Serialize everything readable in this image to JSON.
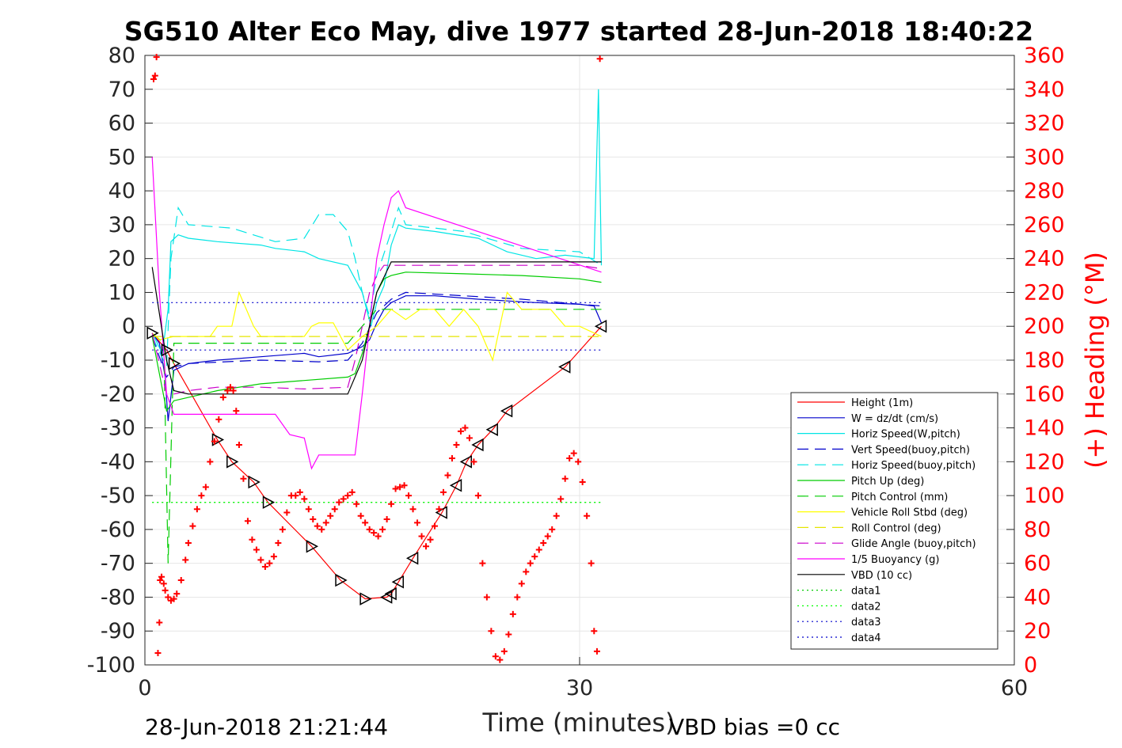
{
  "title": "SG510 Alter Eco May, dive 1977 started 28-Jun-2018 18:40:22",
  "footer_left": "28-Jun-2018 21:21:44",
  "footer_right": "VBD bias =0 cc",
  "chart_data": {
    "type": "line",
    "xlabel": "Time (minutes)",
    "ylabel_left": "",
    "ylabel_right": "(+) Heading (°M)",
    "xlim": [
      0,
      60
    ],
    "ylim_left": [
      -100,
      80
    ],
    "ylim_right": [
      0,
      360
    ],
    "x_ticks": [
      "0",
      "30",
      "60"
    ],
    "y_ticks_left": [
      "80",
      "70",
      "60",
      "50",
      "40",
      "30",
      "20",
      "10",
      "0",
      "-10",
      "-20",
      "-30",
      "-40",
      "-50",
      "-60",
      "-70",
      "-80",
      "-90",
      "-100"
    ],
    "y_ticks_right": [
      "360",
      "340",
      "320",
      "300",
      "280",
      "260",
      "240",
      "220",
      "200",
      "180",
      "160",
      "140",
      "120",
      "100",
      "80",
      "60",
      "40",
      "20",
      "0"
    ],
    "grid": true,
    "legend_position": "right",
    "colors": {
      "height": "#ff0000",
      "w": "#0000cc",
      "horiz": "#00e5e5",
      "vert_buoy": "#0000cc",
      "horiz_buoy": "#00e5e5",
      "pitch": "#00cc00",
      "pitch_ctrl": "#00cc00",
      "roll": "#ffff00",
      "roll_ctrl": "#e5e500",
      "glide": "#cc00cc",
      "buoyancy": "#ff00ff",
      "vbd": "#000000",
      "data1": "#00cc00",
      "data2": "#00ff00",
      "data3": "#0000cc",
      "data4": "#0000cc"
    },
    "series": [
      {
        "name": "Height (1m)",
        "x": [
          0.5,
          1.5,
          2,
          5,
          6,
          7.5,
          8.5,
          11.5,
          13.5,
          15.2,
          16.7,
          17,
          17.5,
          18.5,
          20.5,
          21.5,
          22.2,
          23,
          24,
          25,
          29,
          31.5
        ],
        "y": [
          -2,
          -7,
          -11,
          -33.5,
          -40,
          -46,
          -52,
          -65,
          -75,
          -80.5,
          -80,
          -79,
          -75.5,
          -68.5,
          -55,
          -47,
          -40,
          -35,
          -30.5,
          -25,
          -12,
          0
        ]
      },
      {
        "name": "W = dz/dt (cm/s)",
        "x": [
          0.5,
          1,
          1.4,
          1.6,
          2,
          3,
          5,
          8,
          11,
          12,
          14,
          14.5,
          15,
          15.5,
          16,
          16.5,
          17,
          17.5,
          18,
          20,
          23,
          27,
          30,
          31,
          31.5
        ],
        "y": [
          -2,
          -5,
          -15,
          -28,
          -13,
          -11,
          -10,
          -9,
          -8,
          -9,
          -8,
          -7,
          -6,
          -4,
          1,
          5,
          7,
          8,
          9,
          9,
          8,
          7,
          6.5,
          6,
          1
        ]
      },
      {
        "name": "Horiz Speed(W,pitch)",
        "x": [
          0.5,
          1.2,
          1.6,
          1.8,
          2.3,
          3,
          5,
          8,
          9,
          11,
          12,
          14,
          14.5,
          15,
          15.3,
          15.6,
          16,
          16.5,
          17,
          17.5,
          18,
          20,
          23,
          25,
          27,
          29,
          31,
          31.3,
          31.5
        ],
        "y": [
          -2,
          -8,
          5,
          25,
          27,
          26,
          25,
          24,
          23,
          22,
          20,
          18,
          14,
          10,
          5,
          0,
          7,
          12,
          24,
          30,
          29,
          28,
          26,
          22,
          20,
          21,
          20,
          70,
          18
        ]
      },
      {
        "name": "Vert Speed(buoy,pitch)",
        "x": [
          0.5,
          1.5,
          2,
          3,
          8,
          12,
          14,
          15,
          16,
          17,
          18,
          22,
          26,
          31.5
        ],
        "y": [
          -3,
          -15,
          -12,
          -11,
          -10,
          -10.5,
          -10,
          -5,
          4,
          8,
          10,
          9,
          8,
          6
        ]
      },
      {
        "name": "Horiz Speed(buoy,pitch)",
        "x": [
          0.5,
          1.5,
          1.8,
          2.3,
          3,
          6,
          9,
          11,
          12,
          13,
          14,
          14.5,
          15,
          15.5,
          16,
          17,
          17.5,
          18,
          22,
          26,
          30,
          31.5
        ],
        "y": [
          -3,
          -12,
          20,
          35,
          30,
          29,
          25,
          26,
          33,
          33,
          28,
          20,
          10,
          3,
          15,
          28,
          35,
          30,
          28,
          23,
          22,
          18
        ]
      },
      {
        "name": "Pitch Up (deg)",
        "x": [
          0.5,
          1.5,
          2,
          3,
          5,
          8,
          11,
          14,
          14.5,
          15,
          15.5,
          16,
          16.5,
          17,
          18,
          22,
          26,
          30,
          31.5
        ],
        "y": [
          -3,
          -25,
          -22,
          -21,
          -19,
          -17,
          -16,
          -15,
          -14,
          -8,
          0,
          10,
          14,
          15,
          16,
          15.5,
          15,
          14,
          13
        ]
      },
      {
        "name": "Pitch Control (mm)",
        "x": [
          0.5,
          1.3,
          1.6,
          2,
          2.5,
          14,
          15,
          16,
          17,
          31.5
        ],
        "y": [
          -2,
          -5,
          -70,
          -5,
          -5,
          -5,
          0,
          5,
          5,
          5
        ]
      },
      {
        "name": "Vehicle Roll Stbd (deg)",
        "x": [
          0.5,
          1,
          2,
          3,
          4.5,
          5,
          5.5,
          6,
          6.5,
          7.5,
          8,
          9,
          10,
          11,
          11.5,
          12,
          13,
          14,
          15,
          16,
          17,
          18,
          19,
          20,
          21,
          22,
          23,
          24,
          25,
          26,
          27,
          28,
          29,
          30,
          31.5
        ],
        "y": [
          -2,
          -4,
          -3,
          -3,
          -3,
          0,
          0,
          0,
          10,
          0,
          -3,
          -3,
          -3,
          -3,
          0,
          1,
          1,
          -7,
          -3,
          0,
          5,
          2,
          5,
          5,
          0,
          5,
          0,
          -10,
          10,
          5,
          5,
          5,
          0,
          0,
          -3
        ]
      },
      {
        "name": "Roll Control (deg)",
        "x": [
          0.5,
          31.5
        ],
        "y": [
          -3,
          -3
        ]
      },
      {
        "name": "Glide Angle (buoy,pitch)",
        "x": [
          0.5,
          1.5,
          2,
          3,
          5,
          8,
          11,
          14,
          14.5,
          15,
          15.5,
          16,
          16.5,
          17,
          18,
          22,
          26,
          30,
          31.5
        ],
        "y": [
          -2,
          -20,
          -20,
          -19,
          -18,
          -18,
          -18.5,
          -18,
          -10,
          0,
          10,
          15,
          18,
          18,
          18,
          18,
          18,
          18,
          17
        ]
      },
      {
        "name": "1/5 Buoyancy (g)",
        "x": [
          0.5,
          1,
          1.5,
          2,
          3,
          6,
          9,
          10,
          11,
          11.5,
          12,
          14,
          14.5,
          15,
          15.5,
          16,
          16.5,
          17,
          17.5,
          18,
          31.5
        ],
        "y": [
          50,
          10,
          -20,
          -26,
          -26,
          -26,
          -26,
          -32,
          -33,
          -42,
          -38,
          -38,
          -38,
          -20,
          0,
          20,
          30,
          38,
          40,
          35,
          16
        ]
      },
      {
        "name": "VBD (10 cc)",
        "x": [
          0.5,
          1.5,
          2,
          3,
          14,
          15,
          16,
          17,
          31.5
        ],
        "y": [
          17.5,
          -10,
          -19,
          -20,
          -20,
          -10,
          10,
          19,
          19
        ]
      },
      {
        "name": "data1",
        "x": [
          0.5,
          31.5
        ],
        "y": [
          -52,
          -52
        ]
      },
      {
        "name": "data2",
        "x": [
          0.5,
          31.5
        ],
        "y": [
          -52,
          -52
        ]
      },
      {
        "name": "data3",
        "x": [
          0.5,
          31.5
        ],
        "y": [
          7,
          7
        ]
      },
      {
        "name": "data4",
        "x": [
          0.5,
          31.5
        ],
        "y": [
          -7,
          -7
        ]
      }
    ],
    "heading": {
      "name": "(+) Heading (°M)",
      "x": [
        0.6,
        0.7,
        0.8,
        0.9,
        1,
        1.05,
        1.15,
        1.3,
        1.4,
        1.6,
        1.8,
        2,
        2.2,
        2.5,
        2.8,
        3,
        3.3,
        3.6,
        3.9,
        4.2,
        4.5,
        4.8,
        5.1,
        5.4,
        5.7,
        5.9,
        6.1,
        6.3,
        6.5,
        6.8,
        7.1,
        7.4,
        7.7,
        8,
        8.3,
        8.6,
        8.9,
        9.2,
        9.5,
        9.8,
        10.1,
        10.4,
        10.7,
        11,
        11.3,
        11.6,
        11.9,
        12.2,
        12.5,
        12.8,
        13.1,
        13.4,
        13.7,
        14,
        14.3,
        14.6,
        14.9,
        15.2,
        15.5,
        15.8,
        16.1,
        16.4,
        16.7,
        17,
        17.3,
        17.6,
        17.9,
        18.2,
        18.5,
        18.8,
        19.1,
        19.4,
        19.7,
        20,
        20.3,
        20.6,
        20.9,
        21.2,
        21.5,
        21.8,
        22.1,
        22.4,
        22.7,
        23,
        23.3,
        23.6,
        23.9,
        24.2,
        24.5,
        24.8,
        25.1,
        25.4,
        25.7,
        26,
        26.3,
        26.6,
        26.9,
        27.2,
        27.5,
        27.8,
        28.1,
        28.4,
        28.7,
        29,
        29.3,
        29.6,
        29.9,
        30.2,
        30.5,
        30.8,
        31,
        31.2,
        31.4
      ],
      "y": [
        346,
        348,
        359,
        7,
        25,
        50,
        52,
        48,
        44,
        40,
        38,
        39,
        42,
        50,
        62,
        72,
        82,
        92,
        100,
        105,
        120,
        132,
        145,
        158,
        162,
        164,
        162,
        150,
        130,
        110,
        85,
        74,
        68,
        62,
        58,
        60,
        64,
        72,
        80,
        90,
        100,
        100,
        102,
        98,
        92,
        86,
        82,
        80,
        84,
        88,
        92,
        96,
        98,
        100,
        102,
        95,
        88,
        84,
        80,
        78,
        76,
        80,
        86,
        95,
        104,
        105,
        106,
        100,
        92,
        84,
        76,
        70,
        74,
        82,
        92,
        102,
        112,
        122,
        130,
        138,
        140,
        134,
        120,
        100,
        60,
        40,
        20,
        5,
        3,
        8,
        18,
        30,
        40,
        48,
        55,
        60,
        64,
        68,
        72,
        76,
        80,
        88,
        98,
        110,
        122,
        125,
        120,
        108,
        88,
        60,
        20,
        8,
        358
      ]
    }
  }
}
